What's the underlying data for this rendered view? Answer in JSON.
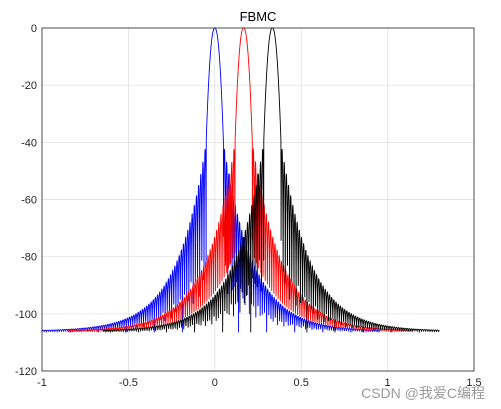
{
  "chart_data": {
    "type": "line",
    "title": "FBMC",
    "xlabel": "",
    "ylabel": "",
    "xlim": [
      -1,
      1.5
    ],
    "ylim": [
      -120,
      0
    ],
    "xticks": [
      -1,
      -0.5,
      0,
      0.5,
      1,
      1.5
    ],
    "yticks": [
      0,
      -20,
      -40,
      -60,
      -80,
      -100,
      -120
    ],
    "xtick_labels": [
      "-1",
      "-0.5",
      "0",
      "0.5",
      "1",
      "1.5"
    ],
    "ytick_labels": [
      "0",
      "-20",
      "-40",
      "-60",
      "-80",
      "-100",
      "-120"
    ],
    "grid": true,
    "floor": -106.5,
    "series": [
      {
        "color": "#0000ff",
        "center": 0.0,
        "x_range": [
          -1.0,
          0.95
        ]
      },
      {
        "color": "#ff0000",
        "center": 0.167,
        "x_range": [
          -0.85,
          1.15
        ]
      },
      {
        "color": "#000000",
        "center": 0.333,
        "x_range": [
          -0.65,
          1.3
        ]
      }
    ]
  },
  "watermark": "CSDN @我爱C编程"
}
